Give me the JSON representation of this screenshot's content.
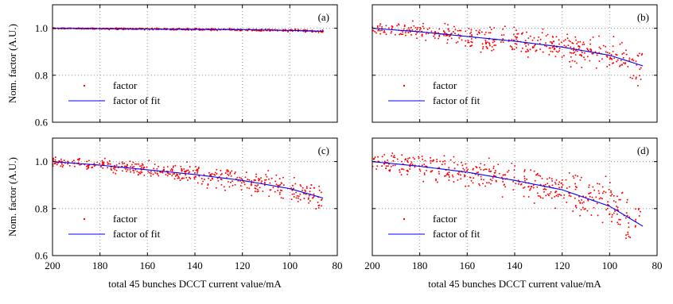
{
  "chart_data": [
    {
      "type": "scatter",
      "panel_label": "(a)",
      "xlabel": "",
      "ylabel": "Nom. factor (A.U.)",
      "xlim": [
        200,
        80
      ],
      "ylim": [
        0.6,
        1.1
      ],
      "xticks": [
        200,
        180,
        160,
        140,
        120,
        100,
        80
      ],
      "yticks": [
        0.6,
        0.8,
        1.0
      ],
      "ytick_labels": [
        "0.6",
        "0.8",
        "1.0"
      ],
      "xtick_labels": [],
      "grid": true,
      "legend_position": "bottom-left",
      "series": [
        {
          "name": "factor",
          "kind": "scatter",
          "color": "#ff0000",
          "fit_x": [
            200,
            180,
            160,
            140,
            120,
            100,
            86
          ],
          "fit_y": [
            1.0,
            0.9985,
            0.997,
            0.9955,
            0.994,
            0.991,
            0.987
          ],
          "noise_amplitude": 0.004,
          "count": 450
        },
        {
          "name": "factor of fit",
          "kind": "line",
          "color": "#0000ff",
          "x": [
            200,
            180,
            160,
            140,
            120,
            100,
            86
          ],
          "y": [
            1.0,
            0.9985,
            0.997,
            0.9955,
            0.994,
            0.991,
            0.987
          ]
        }
      ]
    },
    {
      "type": "scatter",
      "panel_label": "(b)",
      "xlabel": "",
      "ylabel": "",
      "xlim": [
        200,
        80
      ],
      "ylim": [
        0.6,
        1.1
      ],
      "xticks": [
        200,
        180,
        160,
        140,
        120,
        100,
        80
      ],
      "yticks": [
        0.6,
        0.8,
        1.0
      ],
      "ytick_labels": [],
      "xtick_labels": [],
      "grid": true,
      "legend_position": "bottom-left",
      "series": [
        {
          "name": "factor",
          "kind": "scatter",
          "color": "#ff0000",
          "fit_x": [
            200,
            180,
            160,
            140,
            120,
            100,
            86
          ],
          "fit_y": [
            1.0,
            0.985,
            0.965,
            0.945,
            0.92,
            0.885,
            0.84
          ],
          "noise_amplitude": 0.05,
          "count": 450
        },
        {
          "name": "factor of fit",
          "kind": "line",
          "color": "#0000ff",
          "x": [
            200,
            180,
            160,
            140,
            120,
            100,
            86
          ],
          "y": [
            1.0,
            0.985,
            0.965,
            0.945,
            0.92,
            0.885,
            0.84
          ]
        }
      ]
    },
    {
      "type": "scatter",
      "panel_label": "(c)",
      "xlabel": "total 45 bunches DCCT current value/mA",
      "ylabel": "Nom. factor (A.U.)",
      "xlim": [
        200,
        80
      ],
      "ylim": [
        0.6,
        1.1
      ],
      "xticks": [
        200,
        180,
        160,
        140,
        120,
        100,
        80
      ],
      "yticks": [
        0.6,
        0.8,
        1.0
      ],
      "ytick_labels": [
        "0.6",
        "0.8",
        "1.0"
      ],
      "xtick_labels": [
        "200",
        "180",
        "160",
        "140",
        "120",
        "100",
        "80"
      ],
      "grid": true,
      "legend_position": "bottom-left",
      "series": [
        {
          "name": "factor",
          "kind": "scatter",
          "color": "#ff0000",
          "fit_x": [
            200,
            180,
            160,
            140,
            120,
            100,
            86
          ],
          "fit_y": [
            1.0,
            0.985,
            0.965,
            0.945,
            0.92,
            0.885,
            0.845
          ],
          "noise_amplitude": 0.04,
          "count": 450
        },
        {
          "name": "factor of fit",
          "kind": "line",
          "color": "#0000ff",
          "x": [
            200,
            180,
            160,
            140,
            120,
            100,
            86
          ],
          "y": [
            1.0,
            0.985,
            0.965,
            0.945,
            0.92,
            0.885,
            0.845
          ]
        }
      ]
    },
    {
      "type": "scatter",
      "panel_label": "(d)",
      "xlabel": "total 45 bunches DCCT current value/mA",
      "ylabel": "",
      "xlim": [
        200,
        80
      ],
      "ylim": [
        0.6,
        1.1
      ],
      "xticks": [
        200,
        180,
        160,
        140,
        120,
        100,
        80
      ],
      "yticks": [
        0.6,
        0.8,
        1.0
      ],
      "ytick_labels": [],
      "xtick_labels": [
        "200",
        "180",
        "160",
        "140",
        "120",
        "100",
        "80"
      ],
      "grid": true,
      "legend_position": "bottom-left",
      "series": [
        {
          "name": "factor",
          "kind": "scatter",
          "color": "#ff0000",
          "fit_x": [
            200,
            180,
            160,
            140,
            120,
            100,
            86
          ],
          "fit_y": [
            1.0,
            0.98,
            0.955,
            0.92,
            0.88,
            0.81,
            0.725
          ],
          "noise_amplitude": 0.07,
          "count": 450
        },
        {
          "name": "factor of fit",
          "kind": "line",
          "color": "#0000ff",
          "x": [
            200,
            180,
            160,
            140,
            120,
            100,
            86
          ],
          "y": [
            1.0,
            0.98,
            0.955,
            0.92,
            0.88,
            0.81,
            0.725
          ]
        }
      ]
    }
  ]
}
